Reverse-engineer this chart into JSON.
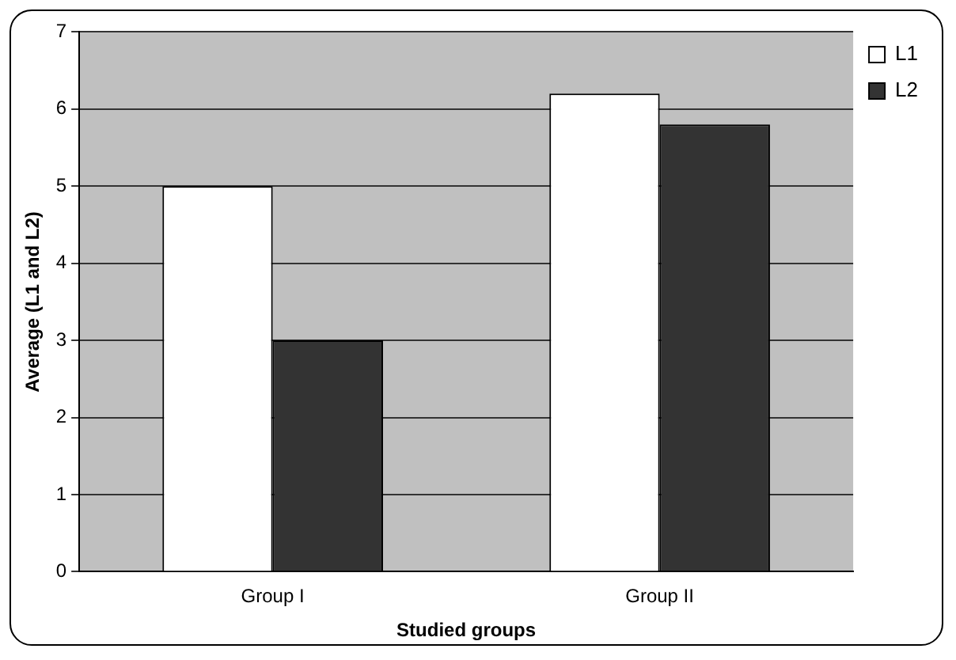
{
  "chart_data": {
    "type": "bar",
    "xlabel": "Studied groups",
    "ylabel": "Average (L1 and L2)",
    "categories": [
      "Group I",
      "Group II"
    ],
    "series": [
      {
        "name": "L1",
        "color": "#ffffff",
        "values": [
          5.0,
          6.2
        ]
      },
      {
        "name": "L2",
        "color": "#333333",
        "values": [
          3.0,
          5.8
        ]
      }
    ],
    "ylim": [
      0,
      7
    ],
    "yticks": [
      0,
      1,
      2,
      3,
      4,
      5,
      6,
      7
    ],
    "grid": "y",
    "legend": "top right"
  }
}
